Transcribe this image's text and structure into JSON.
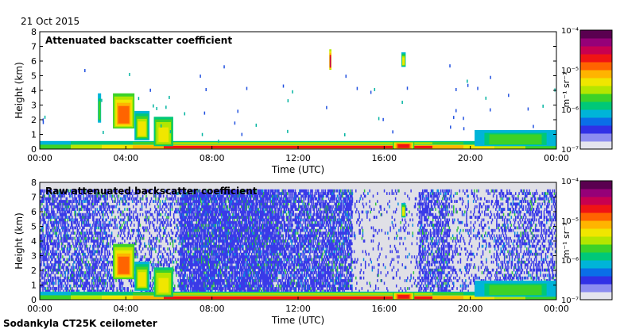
{
  "date": "21 Oct 2015",
  "instrument": "Sodankyla CT25K ceilometer",
  "colorbar": {
    "unit": "m⁻¹ sr⁻¹",
    "ticks": [
      "10⁻⁷",
      "10⁻⁶",
      "10⁻⁵",
      "10⁻⁴"
    ],
    "colors": [
      "#e4e4ee",
      "#8c8cf0",
      "#3030e6",
      "#0a6ee8",
      "#00b4d8",
      "#00c878",
      "#3cd228",
      "#b4e600",
      "#f0e600",
      "#ffb400",
      "#ff6400",
      "#f01414",
      "#c80050",
      "#960078",
      "#5a0050"
    ]
  },
  "chart_data": [
    {
      "type": "heatmap",
      "title": "Attenuated backscatter coefficient",
      "xlabel": "Time (UTC)",
      "ylabel": "Height (km)",
      "xticks": [
        "00:00",
        "04:00",
        "08:00",
        "12:00",
        "16:00",
        "20:00",
        "00:00"
      ],
      "xlim_hours": [
        0,
        24
      ],
      "ylim_km": [
        0,
        8
      ],
      "yticks": [
        0,
        1,
        2,
        3,
        4,
        5,
        6,
        7,
        8
      ],
      "noise_background": false,
      "features": [
        {
          "name": "surface layer",
          "t0": 0,
          "t1": 24,
          "h0": 0,
          "h1": 0.35,
          "level": 0.75
        },
        {
          "name": "boundary layer",
          "t0": 0,
          "t1": 24,
          "h0": 0.3,
          "h1": 0.55,
          "level": 0.5
        },
        {
          "name": "cloud",
          "t0": 3.4,
          "t1": 4.4,
          "h0": 1.4,
          "h1": 3.8,
          "level": 0.72
        },
        {
          "name": "cloud",
          "t0": 4.4,
          "t1": 5.1,
          "h0": 0.6,
          "h1": 2.6,
          "level": 0.55
        },
        {
          "name": "cloud",
          "t0": 5.3,
          "t1": 6.2,
          "h0": 0.2,
          "h1": 2.2,
          "level": 0.6
        },
        {
          "name": "cloud",
          "t0": 2.7,
          "t1": 2.85,
          "h0": 1.8,
          "h1": 3.8,
          "level": 0.45
        },
        {
          "name": "cloud",
          "t0": 13.45,
          "t1": 13.55,
          "h0": 5.4,
          "h1": 6.8,
          "level": 0.85
        },
        {
          "name": "cloud",
          "t0": 16.8,
          "t1": 17.0,
          "h0": 5.6,
          "h1": 6.6,
          "level": 0.55
        },
        {
          "name": "low cloud",
          "t0": 20.2,
          "t1": 24,
          "h0": 0.2,
          "h1": 1.3,
          "level": 0.45
        },
        {
          "name": "fog",
          "t0": 16.4,
          "t1": 17.4,
          "h0": 0,
          "h1": 0.5,
          "level": 0.8
        }
      ]
    },
    {
      "type": "heatmap",
      "title": "Raw attenuated backscatter coefficient",
      "xlabel": "Time (UTC)",
      "ylabel": "Height (km)",
      "xticks": [
        "00:00",
        "04:00",
        "08:00",
        "12:00",
        "16:00",
        "20:00",
        "00:00"
      ],
      "xlim_hours": [
        0,
        24
      ],
      "ylim_km": [
        0,
        8
      ],
      "yticks": [
        0,
        1,
        2,
        3,
        4,
        5,
        6,
        7,
        8
      ],
      "noise_background": true,
      "features": [
        {
          "name": "surface layer",
          "t0": 0,
          "t1": 24,
          "h0": 0,
          "h1": 0.35,
          "level": 0.75
        },
        {
          "name": "boundary layer",
          "t0": 0,
          "t1": 24,
          "h0": 0.3,
          "h1": 0.55,
          "level": 0.5
        },
        {
          "name": "cloud",
          "t0": 3.4,
          "t1": 4.4,
          "h0": 1.4,
          "h1": 3.8,
          "level": 0.72
        },
        {
          "name": "cloud",
          "t0": 4.4,
          "t1": 5.1,
          "h0": 0.6,
          "h1": 2.6,
          "level": 0.55
        },
        {
          "name": "cloud",
          "t0": 5.3,
          "t1": 6.2,
          "h0": 0.2,
          "h1": 2.2,
          "level": 0.6
        },
        {
          "name": "cloud",
          "t0": 16.8,
          "t1": 17.0,
          "h0": 5.6,
          "h1": 6.6,
          "level": 0.55
        },
        {
          "name": "low cloud",
          "t0": 20.2,
          "t1": 24,
          "h0": 0.2,
          "h1": 1.3,
          "level": 0.45
        },
        {
          "name": "fog",
          "t0": 16.4,
          "t1": 17.4,
          "h0": 0,
          "h1": 0.5,
          "level": 0.8
        }
      ],
      "noise_regions": [
        {
          "t0": 0,
          "t1": 3.2,
          "density": 0.55
        },
        {
          "t0": 3.2,
          "t1": 6.5,
          "density": 0.3
        },
        {
          "t0": 6.5,
          "t1": 11.0,
          "density": 0.8
        },
        {
          "t0": 11.0,
          "t1": 14.5,
          "density": 0.65
        },
        {
          "t0": 14.5,
          "t1": 17.6,
          "density": 0.1
        },
        {
          "t0": 17.6,
          "t1": 19.0,
          "density": 0.55
        },
        {
          "t0": 19.0,
          "t1": 21.2,
          "density": 0.2
        },
        {
          "t0": 21.2,
          "t1": 24,
          "density": 0.4
        }
      ]
    }
  ]
}
